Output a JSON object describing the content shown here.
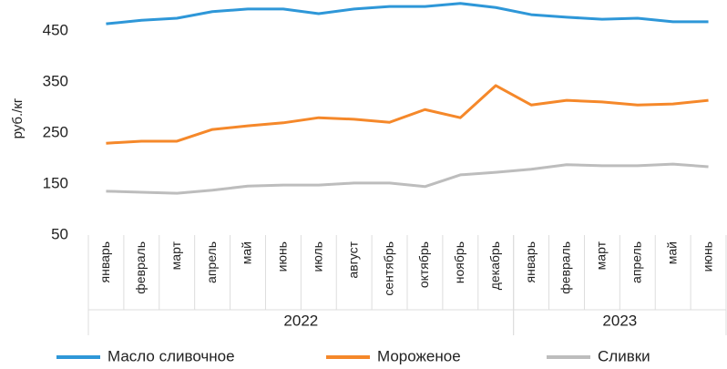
{
  "chart_data": {
    "type": "line",
    "ylabel": "руб./кг",
    "categories": [
      "январь",
      "февраль",
      "март",
      "апрель",
      "май",
      "июнь",
      "июль",
      "август",
      "сентябрь",
      "октябрь",
      "ноябрь",
      "декабрь",
      "январь",
      "февраль",
      "март",
      "апрель",
      "май",
      "июнь"
    ],
    "groups": [
      {
        "label": "2022",
        "span": 12
      },
      {
        "label": "2023",
        "span": 6
      }
    ],
    "series": [
      {
        "name": "Масло сливочное",
        "color": "#2e97d8",
        "values": [
          464,
          471,
          475,
          488,
          493,
          493,
          484,
          493,
          498,
          498,
          504,
          496,
          482,
          477,
          473,
          475,
          468,
          468
        ]
      },
      {
        "name": "Мороженое",
        "color": "#f5882a",
        "values": [
          230,
          234,
          234,
          257,
          264,
          270,
          280,
          277,
          271,
          296,
          280,
          343,
          305,
          314,
          311,
          305,
          307,
          314
        ]
      },
      {
        "name": "Сливки",
        "color": "#bdbdbd",
        "values": [
          136,
          134,
          132,
          138,
          146,
          148,
          148,
          152,
          152,
          145,
          168,
          173,
          179,
          188,
          186,
          186,
          189,
          184
        ]
      }
    ],
    "ylim": [
      50,
      510
    ],
    "yticks": [
      50,
      150,
      250,
      350,
      450
    ],
    "grid": false,
    "legend": "bottom"
  }
}
